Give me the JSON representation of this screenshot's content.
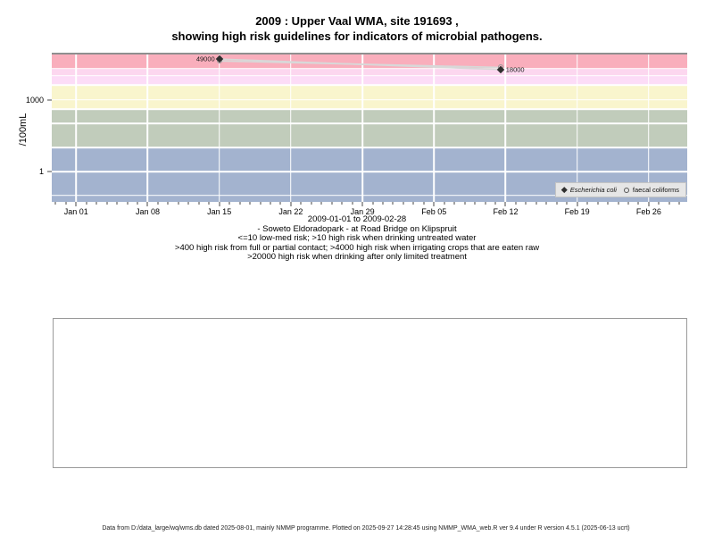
{
  "page": {
    "title_line1": "2009 : Upper Vaal WMA, site 191693 ,",
    "title_line2": "showing high risk guidelines for indicators of microbial pathogens.",
    "footer": "Data from D:/data_large/wq/wms.db dated 2025-08-01, mainly NMMP programme. Plotted on 2025-09-27 14:28:45 using NMMP_WMA_web.R ver 9.4 under R version 4.5.1 (2025-06-13 ucrt)"
  },
  "chart_data": {
    "type": "line",
    "title": "2009 : Upper Vaal WMA, site 191693 , showing high risk guidelines for indicators of microbial pathogens.",
    "ylabel": "/100mL",
    "yscale": "log",
    "ylim": [
      0.05,
      90000
    ],
    "line_color": "#d8d8d8",
    "yticks": [
      {
        "value": 1000,
        "label": "1000"
      },
      {
        "value": 1,
        "label": "1"
      }
    ],
    "h_gridline_values": [
      20000,
      10000,
      4000,
      1000,
      400,
      100,
      10,
      1,
      0.1
    ],
    "x_axis": {
      "unit": "days from 2009-01-01",
      "minor_day_range": [
        -2,
        59
      ],
      "ticks": [
        {
          "day": 0,
          "label": "Jan 01"
        },
        {
          "day": 7,
          "label": "Jan 08"
        },
        {
          "day": 14,
          "label": "Jan 15"
        },
        {
          "day": 21,
          "label": "Jan 22"
        },
        {
          "day": 28,
          "label": "Jan 29"
        },
        {
          "day": 35,
          "label": "Feb 05"
        },
        {
          "day": 42,
          "label": "Feb 12"
        },
        {
          "day": 49,
          "label": "Feb 19"
        },
        {
          "day": 56,
          "label": "Feb 26"
        }
      ]
    },
    "guideline_bands": [
      {
        "min": 20000,
        "max": null,
        "color": "#f9aebc",
        "meaning": ">20000 high risk when drinking after only limited treatment"
      },
      {
        "min": 10000,
        "max": 20000,
        "color": "#fcd7ef"
      },
      {
        "min": 4000,
        "max": 10000,
        "color": "#fcdcf7",
        "meaning": ">4000 high risk when irrigating crops that are eaten raw"
      },
      {
        "min": 400,
        "max": 4000,
        "color": "#f9f5cd",
        "meaning": ">400 high risk from full or partial contact"
      },
      {
        "min": 10,
        "max": 400,
        "color": "#c1ccbb",
        "meaning": ">10 high risk when drinking untreated water"
      },
      {
        "min": null,
        "max": 10,
        "color": "#a3b3cf",
        "meaning": "<=10 low-med risk"
      }
    ],
    "series": [
      {
        "name": "Escherichia coli",
        "marker": "filled-diamond",
        "points": [
          {
            "day": 14,
            "value": 49000,
            "label": "49000",
            "label_side": "left"
          },
          {
            "day": 41.5,
            "value": 18000,
            "label": "18000",
            "label_side": "right"
          }
        ]
      },
      {
        "name": "faecal coliforms",
        "marker": "open-circle",
        "values_estimated": true,
        "points": [
          {
            "day": 14,
            "value": 41000
          },
          {
            "day": 41.5,
            "value": 22000
          }
        ]
      }
    ],
    "legend": {
      "position": "bottom-right",
      "items": [
        {
          "label": "Escherichia coli",
          "marker": "filled-diamond",
          "italic": true
        },
        {
          "label": "faecal coliforms",
          "marker": "open-circle",
          "italic": false
        }
      ]
    },
    "caption_lines": [
      "2009-01-01 to 2009-02-28",
      "- Soweto Eldoradopark - at Road Bridge on Klipspruit",
      "<=10 low-med risk; >10 high risk when drinking untreated water",
      ">400 high risk from full or partial contact; >4000 high risk when irrigating crops that are eaten raw",
      ">20000 high risk when drinking after only limited treatment"
    ]
  }
}
